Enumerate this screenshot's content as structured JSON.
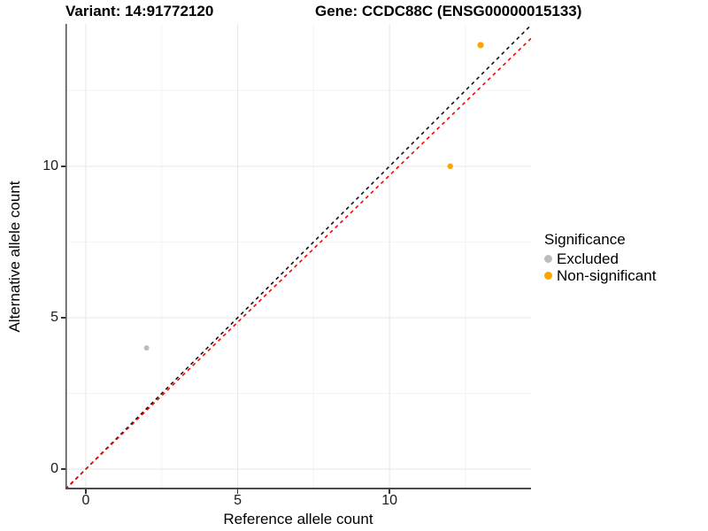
{
  "header": {
    "variant_title": "Variant: 14:91772120",
    "gene_title": "Gene: CCDC88C (ENSG00000015133)"
  },
  "axes": {
    "x_label": "Reference allele count",
    "y_label": "Alternative allele count",
    "x_ticks": [
      0,
      5,
      10
    ],
    "y_ticks": [
      0,
      5,
      10
    ]
  },
  "legend": {
    "title": "Significance",
    "items": [
      {
        "label": "Excluded",
        "color": "#bdbdbd"
      },
      {
        "label": "Non-significant",
        "color": "#ffa500"
      }
    ]
  },
  "colors": {
    "grid_major": "#e7e7e7",
    "grid_minor": "#f4f4f4",
    "identity_line": "#111111",
    "expected_line": "#ff0000",
    "spine": "#4d4d4d"
  },
  "chart_data": {
    "type": "scatter",
    "title": "Variant: 14:91772120 — Gene: CCDC88C (ENSG00000015133)",
    "xlabel": "Reference allele count",
    "ylabel": "Alternative allele count",
    "xlim": [
      -0.67,
      14.66
    ],
    "ylim": [
      -0.67,
      14.7
    ],
    "grid": {
      "major": [
        0,
        5,
        10
      ],
      "minor": [
        2.5,
        7.5,
        12.5
      ]
    },
    "legend_position": "right",
    "series": [
      {
        "name": "Excluded",
        "color": "#bdbdbd",
        "points": [
          {
            "x": 2,
            "y": 4,
            "r": 3.0
          }
        ]
      },
      {
        "name": "Non-significant",
        "color": "#ffa500",
        "points": [
          {
            "x": 12,
            "y": 10,
            "r": 3.2
          },
          {
            "x": 13,
            "y": 14,
            "r": 3.6
          }
        ]
      }
    ],
    "reference_lines": [
      {
        "name": "identity",
        "slope": 1.0,
        "intercept": 0,
        "style": "dashed",
        "color": "#111111"
      },
      {
        "name": "expected",
        "slope": 0.97,
        "intercept": 0,
        "style": "dashed",
        "color": "#ff0000"
      }
    ]
  }
}
